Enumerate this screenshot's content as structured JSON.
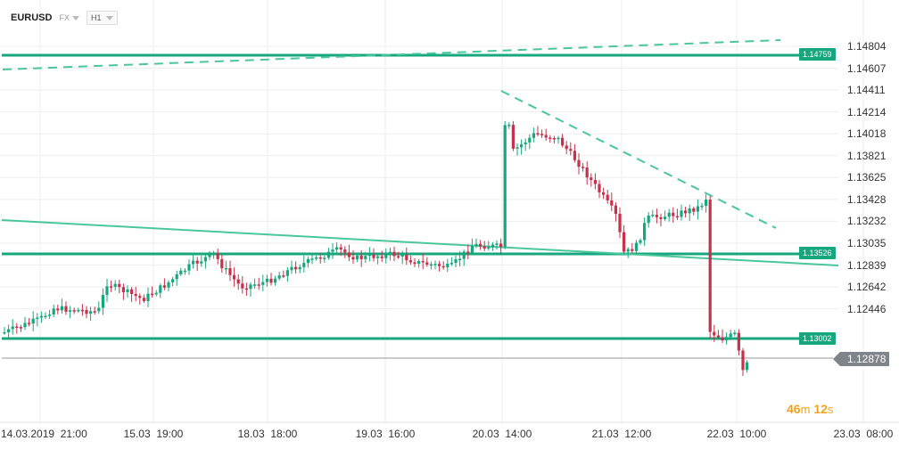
{
  "header": {
    "symbol": "EURUSD",
    "market": "FX",
    "timeframe": "H1"
  },
  "price_tags": {
    "r1": "1.14759",
    "r2": "1.13526",
    "r3": "1.13002"
  },
  "current_price": "1.12878",
  "countdown": {
    "min": "46",
    "min_unit": "m",
    "sec": "12",
    "sec_unit": "s"
  },
  "y_axis": [
    "1.14804",
    "1.14607",
    "1.14411",
    "1.14214",
    "1.14018",
    "1.13821",
    "1.13625",
    "1.13428",
    "1.13232",
    "1.13035",
    "1.12839",
    "1.12642",
    "1.12446"
  ],
  "x_axis": [
    "14.03.2019  21:00",
    "15.03  19:00",
    "18.03  18:00",
    "19.03  16:00",
    "20.03  14:00",
    "21.03  12:00",
    "22.03  10:00",
    "23.03  08:00"
  ],
  "colors": {
    "up": "#17a77e",
    "down": "#c9304a",
    "level": "#17a77e",
    "trend": "#4ac79a",
    "grid": "#eeeeee",
    "current": "#7e8489",
    "countdown": "#f2a21a"
  }
}
